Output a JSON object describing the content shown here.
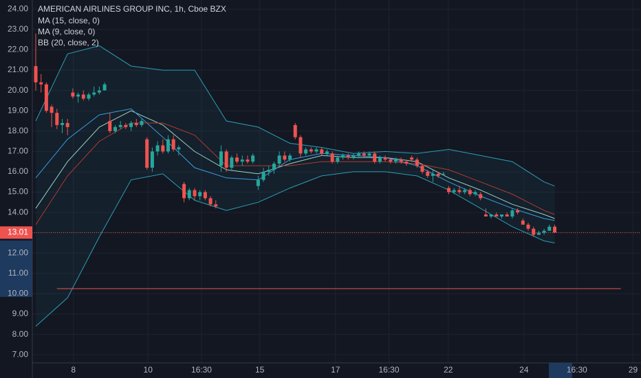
{
  "chart_data": {
    "type": "candlestick",
    "title": "AMERICAN AIRLINES GROUP INC, 1h, Cboe BZX",
    "up_color": "#26a69a",
    "down_color": "#ef5350",
    "ylim": [
      6.6,
      24.45
    ],
    "yticks": [
      {
        "value": 7,
        "label": "7.00"
      },
      {
        "value": 8,
        "label": "8.00"
      },
      {
        "value": 9,
        "label": "9.00"
      },
      {
        "value": 10,
        "label": "10.00"
      },
      {
        "value": 11,
        "label": "11.00"
      },
      {
        "value": 12,
        "label": "12.00"
      },
      {
        "value": 13,
        "label": "13.00"
      },
      {
        "value": 14,
        "label": "14.00"
      },
      {
        "value": 15,
        "label": "15.00"
      },
      {
        "value": 16,
        "label": "16.00"
      },
      {
        "value": 17,
        "label": "17.00"
      },
      {
        "value": 18,
        "label": "18.00"
      },
      {
        "value": 19,
        "label": "19.00"
      },
      {
        "value": 20,
        "label": "20.00"
      },
      {
        "value": 21,
        "label": "21.00"
      },
      {
        "value": 22,
        "label": "22.00"
      },
      {
        "value": 23,
        "label": "23.00"
      },
      {
        "value": 24,
        "label": "24.00"
      }
    ],
    "xlim": [
      -0.65,
      114.3
    ],
    "xticks": [
      {
        "value": 7.1,
        "label": "8"
      },
      {
        "value": 21.2,
        "label": "10"
      },
      {
        "value": 31.3,
        "label": "16:30"
      },
      {
        "value": 42.3,
        "label": "15"
      },
      {
        "value": 56.6,
        "label": "17"
      },
      {
        "value": 66.7,
        "label": "16:30"
      },
      {
        "value": 77.9,
        "label": "22"
      },
      {
        "value": 92.2,
        "label": "24"
      },
      {
        "value": 102.2,
        "label": "16:30"
      },
      {
        "value": 112.8,
        "label": "29"
      }
    ],
    "grid": true,
    "last_price": 13.01,
    "hline": 10.25,
    "candles": [
      [
        21.2,
        22.8,
        20.0,
        20.4
      ],
      [
        20.4,
        20.8,
        19.9,
        20.3
      ],
      [
        20.3,
        20.4,
        18.9,
        19.0
      ],
      [
        19.2,
        19.3,
        18.2,
        18.9
      ],
      [
        18.9,
        19.1,
        18.1,
        18.3
      ],
      [
        18.3,
        18.6,
        17.9,
        18.4
      ],
      [
        18.4,
        18.6,
        17.8,
        18.2
      ],
      [
        19.9,
        20.1,
        19.6,
        19.7
      ],
      [
        19.7,
        19.9,
        19.4,
        19.8
      ],
      [
        19.8,
        20.0,
        19.5,
        19.6
      ],
      [
        19.6,
        19.9,
        19.5,
        19.8
      ],
      [
        19.8,
        20.2,
        19.7,
        19.9
      ],
      [
        19.9,
        20.2,
        19.8,
        20.0
      ],
      [
        20.0,
        20.4,
        20.0,
        20.3
      ],
      [
        18.5,
        18.9,
        17.9,
        18.0
      ],
      [
        18.0,
        18.3,
        17.9,
        18.2
      ],
      [
        18.2,
        18.5,
        18.1,
        18.3
      ],
      [
        18.3,
        18.4,
        18.1,
        18.2
      ],
      [
        18.2,
        18.5,
        18.0,
        18.4
      ],
      [
        18.4,
        18.6,
        18.2,
        18.3
      ],
      [
        18.3,
        18.6,
        18.2,
        18.5
      ],
      [
        17.6,
        17.7,
        16.1,
        16.2
      ],
      [
        16.2,
        17.2,
        16.0,
        17.0
      ],
      [
        17.0,
        17.5,
        16.8,
        17.3
      ],
      [
        17.3,
        17.6,
        16.9,
        17.0
      ],
      [
        17.0,
        17.8,
        16.9,
        17.6
      ],
      [
        17.6,
        17.8,
        17.0,
        17.1
      ],
      [
        17.1,
        17.3,
        16.8,
        17.2
      ],
      [
        15.4,
        15.5,
        14.5,
        14.7
      ],
      [
        14.7,
        15.2,
        14.6,
        15.1
      ],
      [
        15.1,
        15.2,
        14.6,
        14.8
      ],
      [
        14.8,
        15.1,
        14.6,
        15.0
      ],
      [
        15.0,
        15.1,
        14.6,
        14.7
      ],
      [
        14.7,
        14.8,
        14.3,
        14.4
      ],
      [
        14.4,
        14.6,
        14.2,
        14.3
      ],
      [
        16.3,
        17.3,
        16.0,
        17.0
      ],
      [
        17.0,
        17.1,
        16.0,
        16.2
      ],
      [
        16.2,
        16.8,
        16.1,
        16.7
      ],
      [
        16.7,
        16.9,
        16.4,
        16.5
      ],
      [
        16.5,
        16.8,
        16.3,
        16.6
      ],
      [
        16.6,
        16.8,
        16.4,
        16.5
      ],
      [
        16.5,
        16.9,
        16.4,
        16.8
      ],
      [
        15.3,
        15.8,
        15.1,
        15.6
      ],
      [
        15.6,
        16.2,
        15.5,
        16.0
      ],
      [
        16.0,
        16.3,
        15.8,
        16.1
      ],
      [
        16.1,
        16.5,
        15.9,
        16.4
      ],
      [
        16.4,
        17.0,
        16.2,
        16.8
      ],
      [
        16.8,
        17.0,
        16.5,
        16.6
      ],
      [
        16.6,
        16.9,
        16.5,
        16.8
      ],
      [
        18.3,
        18.4,
        17.6,
        17.7
      ],
      [
        17.7,
        17.8,
        16.7,
        16.9
      ],
      [
        16.9,
        17.2,
        16.8,
        17.1
      ],
      [
        17.1,
        17.2,
        16.9,
        17.0
      ],
      [
        17.0,
        17.2,
        16.9,
        17.1
      ],
      [
        17.1,
        17.2,
        16.8,
        16.9
      ],
      [
        16.9,
        17.1,
        16.8,
        17.0
      ],
      [
        16.9,
        17.0,
        16.4,
        16.5
      ],
      [
        16.5,
        16.8,
        16.4,
        16.7
      ],
      [
        16.7,
        16.9,
        16.6,
        16.8
      ],
      [
        16.8,
        16.9,
        16.6,
        16.7
      ],
      [
        16.7,
        16.9,
        16.6,
        16.8
      ],
      [
        16.8,
        17.0,
        16.7,
        16.9
      ],
      [
        16.9,
        17.0,
        16.7,
        16.8
      ],
      [
        16.8,
        17.0,
        16.7,
        16.9
      ],
      [
        16.9,
        17.0,
        16.4,
        16.5
      ],
      [
        16.5,
        16.8,
        16.4,
        16.7
      ],
      [
        16.7,
        16.8,
        16.5,
        16.6
      ],
      [
        16.6,
        16.7,
        16.4,
        16.5
      ],
      [
        16.5,
        16.7,
        16.4,
        16.6
      ],
      [
        16.6,
        16.7,
        16.4,
        16.5
      ],
      [
        16.5,
        16.6,
        16.3,
        16.4
      ],
      [
        16.7,
        16.8,
        16.5,
        16.6
      ],
      [
        16.6,
        16.7,
        16.2,
        16.3
      ],
      [
        16.3,
        16.4,
        15.9,
        16.0
      ],
      [
        16.0,
        16.1,
        15.7,
        15.8
      ],
      [
        15.8,
        16.1,
        15.5,
        15.9
      ],
      [
        15.9,
        16.0,
        15.7,
        15.8
      ],
      [
        15.9,
        16.0,
        15.8,
        15.9
      ],
      [
        15.2,
        15.3,
        14.9,
        15.0
      ],
      [
        15.0,
        15.2,
        14.9,
        15.1
      ],
      [
        15.1,
        15.3,
        14.9,
        15.0
      ],
      [
        15.0,
        15.2,
        14.9,
        15.1
      ],
      [
        15.1,
        15.2,
        14.8,
        14.9
      ],
      [
        14.9,
        15.1,
        14.8,
        15.0
      ],
      [
        14.9,
        15.0,
        14.6,
        14.7
      ],
      [
        13.9,
        14.2,
        13.8,
        13.8
      ],
      [
        13.8,
        13.9,
        13.7,
        13.9
      ],
      [
        13.9,
        14.0,
        13.8,
        13.8
      ],
      [
        13.8,
        13.9,
        13.7,
        13.9
      ],
      [
        13.9,
        14.0,
        13.8,
        13.8
      ],
      [
        13.8,
        14.2,
        13.7,
        14.1
      ],
      [
        14.1,
        14.2,
        13.9,
        14.0
      ],
      [
        13.6,
        13.7,
        13.4,
        13.4
      ],
      [
        13.4,
        13.5,
        13.1,
        13.2
      ],
      [
        13.2,
        13.3,
        12.8,
        12.9
      ],
      [
        12.9,
        13.1,
        12.9,
        13.0
      ],
      [
        13.0,
        13.2,
        12.9,
        13.1
      ],
      [
        13.1,
        13.4,
        13.1,
        13.3
      ],
      [
        13.3,
        13.4,
        13.0,
        13.01
      ]
    ],
    "indicators": [
      {
        "name": "MA (15, close, 0)",
        "color": "#a5d6c8",
        "x": [
          0,
          6,
          12,
          18,
          24,
          30,
          36,
          42,
          48,
          54,
          60,
          66,
          72,
          78,
          84,
          90,
          96,
          98
        ],
        "values": [
          14.2,
          16.5,
          18.2,
          19.0,
          18.3,
          17.0,
          16.1,
          15.9,
          16.4,
          16.8,
          16.7,
          16.7,
          16.5,
          15.7,
          15.1,
          14.4,
          13.9,
          13.7
        ]
      },
      {
        "name": "MA (9, close, 0)",
        "color": "#3b9ee0",
        "x": [
          0,
          6,
          12,
          18,
          24,
          30,
          36,
          42,
          48,
          54,
          60,
          66,
          72,
          78,
          84,
          90,
          96,
          98
        ],
        "values": [
          15.7,
          17.6,
          18.8,
          19.1,
          17.7,
          16.2,
          15.7,
          15.6,
          16.6,
          16.9,
          16.8,
          16.7,
          16.3,
          15.5,
          14.8,
          14.2,
          13.7,
          13.6
        ]
      },
      {
        "name": "BB (20, close, 2)",
        "color": "#2b9fb3",
        "basis_color": "#b03a2e",
        "x": [
          0,
          6,
          12,
          18,
          24,
          30,
          36,
          42,
          48,
          54,
          60,
          66,
          72,
          78,
          84,
          90,
          96,
          98
        ],
        "upper": [
          18.5,
          21.8,
          22.2,
          21.2,
          21.0,
          21.0,
          18.5,
          18.2,
          17.4,
          17.2,
          16.9,
          17.0,
          16.9,
          17.1,
          16.8,
          16.5,
          15.5,
          15.3
        ],
        "basis": [
          13.4,
          15.8,
          17.5,
          18.4,
          18.4,
          17.8,
          16.3,
          16.3,
          16.3,
          16.5,
          16.5,
          16.5,
          16.4,
          16.1,
          15.5,
          14.9,
          14.1,
          13.9
        ],
        "lower": [
          8.4,
          9.8,
          12.8,
          15.6,
          15.9,
          14.6,
          14.1,
          14.5,
          15.2,
          15.8,
          16.0,
          16.0,
          15.8,
          15.1,
          14.2,
          13.3,
          12.6,
          12.5
        ]
      }
    ]
  }
}
